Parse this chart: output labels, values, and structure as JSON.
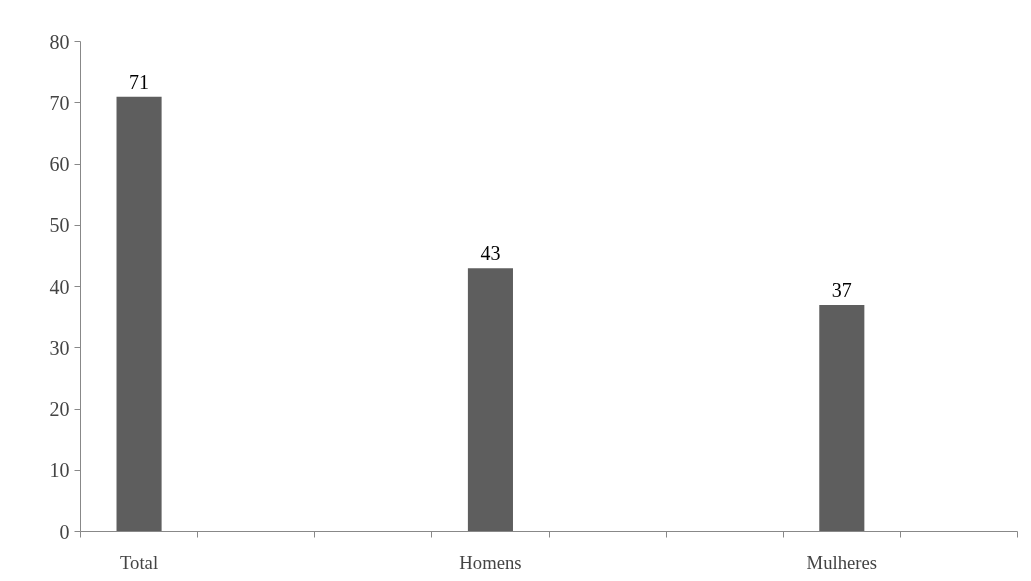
{
  "chart_data": {
    "type": "bar",
    "categories": [
      "Total",
      "Homens",
      "Mulheres"
    ],
    "values": [
      71,
      43,
      37
    ],
    "color": "#5e5e5e",
    "ylim": [
      0,
      80
    ],
    "yticks": [
      0,
      10,
      20,
      30,
      40,
      50,
      60,
      70,
      80
    ],
    "grid": false,
    "data_labels": true
  }
}
